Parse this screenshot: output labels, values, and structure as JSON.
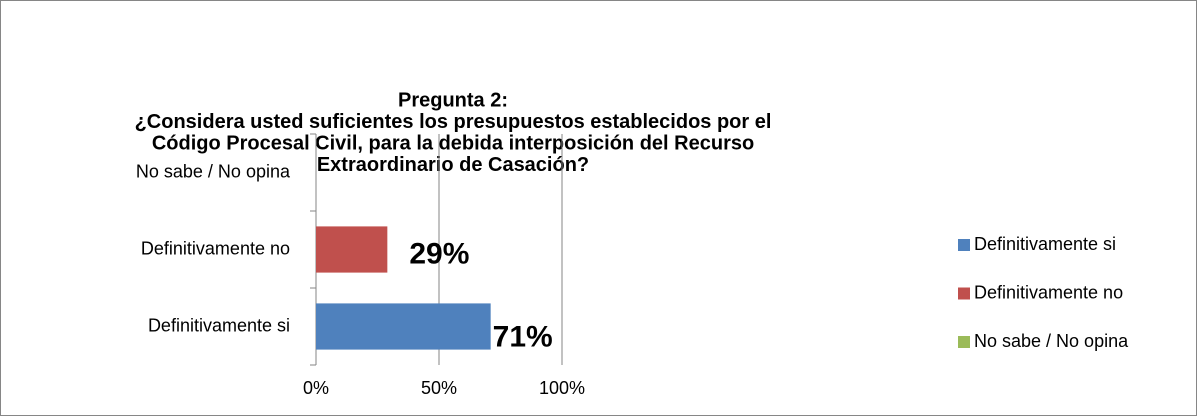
{
  "chart_data": {
    "type": "hbar",
    "title": [
      "Pregunta 2:",
      "¿Considera usted suficientes los presupuestos establecidos por el",
      "Código Procesal Civil, para la debida interposición del Recurso",
      "Extraordinario de Casación?"
    ],
    "categories": [
      "Definitivamente si",
      "Definitivamente no",
      "No sabe / No opina"
    ],
    "values": [
      71,
      29,
      0
    ],
    "value_labels": [
      "71%",
      "29%",
      null
    ],
    "colors": [
      "#4f81bd",
      "#c0504d",
      "#9bbb59"
    ],
    "xlim": [
      0,
      100
    ],
    "xticks": [
      {
        "value": 0,
        "label": "0%"
      },
      {
        "value": 50,
        "label": "50%"
      },
      {
        "value": 100,
        "label": "100%"
      }
    ],
    "grid": true,
    "legend": "right"
  }
}
